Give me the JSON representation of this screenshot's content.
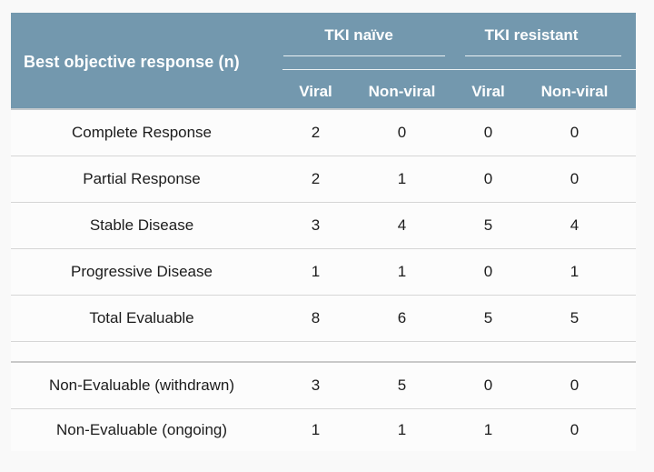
{
  "colors": {
    "page_background": "#f9f9f9",
    "header_background": "#7398ae",
    "header_text": "#ffffff",
    "header_bottom_border": "#c3c9cd",
    "row_separator": "#d6d6d6",
    "section_divider": "#c9c9c9",
    "body_text": "#1c1c1c",
    "body_background": "#fcfcfc"
  },
  "chart_data": {
    "type": "table",
    "row_label_header": "Best objective response (n)",
    "column_groups": [
      {
        "label": "TKI naïve",
        "subcolumns": [
          "Viral",
          "Non-viral"
        ]
      },
      {
        "label": "TKI resistant",
        "subcolumns": [
          "Viral",
          "Non-viral"
        ]
      }
    ],
    "columns": [
      "Viral",
      "Non-viral",
      "Viral",
      "Non-viral"
    ],
    "rows": [
      {
        "label": "Complete Response",
        "values": [
          2,
          0,
          0,
          0
        ]
      },
      {
        "label": "Partial Response",
        "values": [
          2,
          1,
          0,
          0
        ]
      },
      {
        "label": "Stable Disease",
        "values": [
          3,
          4,
          5,
          4
        ]
      },
      {
        "label": "Progressive Disease",
        "values": [
          1,
          1,
          0,
          1
        ]
      },
      {
        "label": "Total Evaluable",
        "values": [
          8,
          6,
          5,
          5
        ]
      },
      {
        "label": "Non-Evaluable (withdrawn)",
        "values": [
          3,
          5,
          0,
          0
        ]
      },
      {
        "label": "Non-Evaluable (ongoing)",
        "values": [
          1,
          1,
          1,
          0
        ]
      }
    ],
    "layout_hints": {
      "spacer_after_row": "Total Evaluable",
      "group_headers_underlined": true,
      "no_outer_bottom_border": true
    }
  }
}
